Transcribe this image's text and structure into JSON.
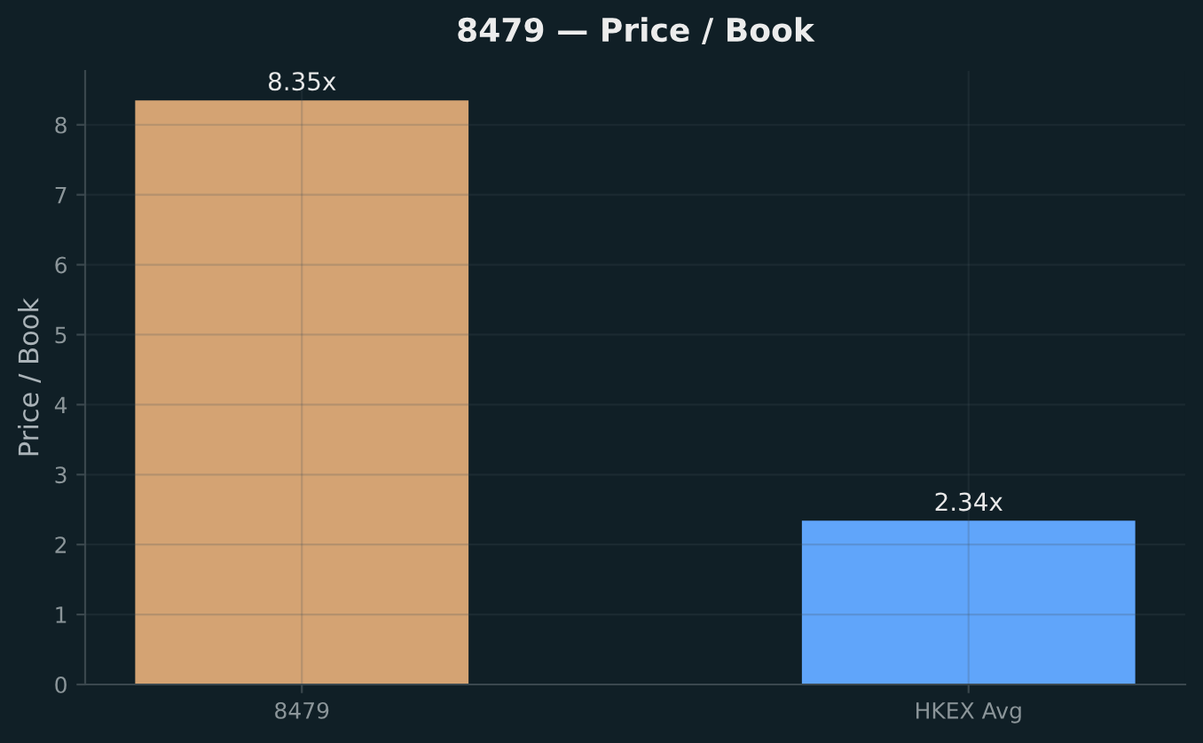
{
  "chart_data": {
    "type": "bar",
    "title": "8479 — Price / Book",
    "ylabel": "Price / Book",
    "categories": [
      "8479",
      "HKEX Avg"
    ],
    "values": [
      8.35,
      2.34
    ],
    "colors": [
      "#d4a373",
      "#60a5fa"
    ],
    "value_labels": [
      "8.35x",
      "2.34x"
    ],
    "ylim": [
      0,
      8.77
    ],
    "yticks": [
      0,
      1,
      2,
      3,
      4,
      5,
      6,
      7,
      8
    ],
    "grid": true
  }
}
